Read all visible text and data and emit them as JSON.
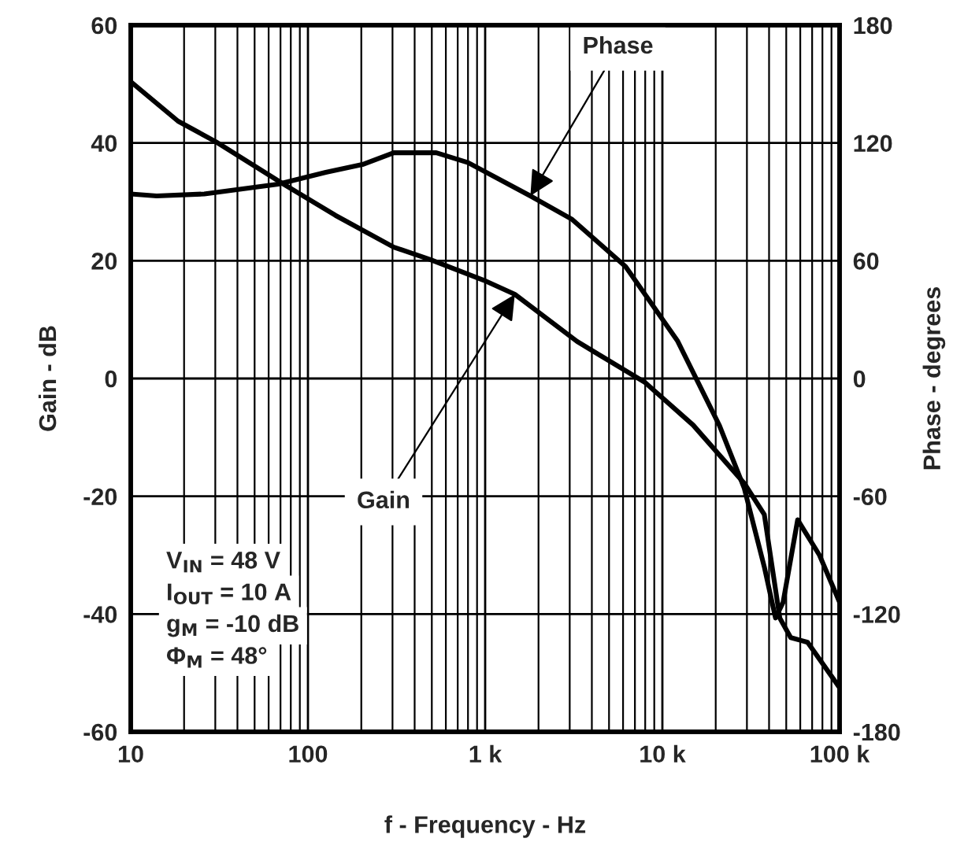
{
  "chart_data": {
    "type": "line",
    "xlabel": "f - Frequency - Hz",
    "ylabel": "Gain - dB",
    "y2label": "Phase - degrees",
    "log": "x",
    "grid": true,
    "legend": false,
    "xlim": [
      10,
      100000
    ],
    "xticks": [
      10,
      100,
      {
        "value": 1000,
        "label": "1 k"
      },
      {
        "value": 10000,
        "label": "10 k"
      },
      {
        "value": 100000,
        "label": "100 k"
      }
    ],
    "ylim": [
      -60,
      60
    ],
    "yticks": [
      -60,
      -40,
      -20,
      0,
      20,
      40,
      60
    ],
    "y2lim": [
      -180,
      180
    ],
    "y2ticks": [
      -180,
      -120,
      -60,
      0,
      60,
      120,
      180
    ],
    "series": [
      {
        "color": "#000000",
        "x": [
          10,
          18.5,
          30.2,
          73,
          143,
          305,
          490,
          980,
          1470,
          3300,
          8000,
          14900,
          29000,
          37600,
          46000,
          53000,
          66000,
          100000
        ],
        "values": [
          50.4,
          43.7,
          40.2,
          33,
          27.7,
          22.3,
          20.2,
          16.7,
          14.3,
          6.3,
          -0.7,
          -7.9,
          -17.8,
          -23.1,
          -40.7,
          -44,
          -44.8,
          -52.5
        ]
      },
      {
        "color": "#000000",
        "axis": "y2",
        "x": [
          10,
          14,
          26,
          68,
          126,
          203,
          305,
          530,
          800,
          1800,
          3100,
          6200,
          12200,
          21000,
          29000,
          37600,
          43500,
          48000,
          58000,
          77000,
          100000
        ],
        "values": [
          94,
          93,
          94,
          99,
          105,
          109,
          115,
          115,
          110,
          93,
          81,
          57,
          19,
          -24,
          -56,
          -96,
          -122,
          -114,
          -72,
          -90,
          -114
        ]
      }
    ],
    "annotations": [
      {
        "text": "Phase",
        "x": 1800,
        "y": 31
      },
      {
        "text": "Gain",
        "x": 1470,
        "y": 14.3
      },
      "V$_{IN}$ = 48 V",
      "I$_{OUT}$ = 10 A",
      "g$_{M}$ = -10 dB",
      "Φ$_{M}$ = 48°"
    ]
  }
}
